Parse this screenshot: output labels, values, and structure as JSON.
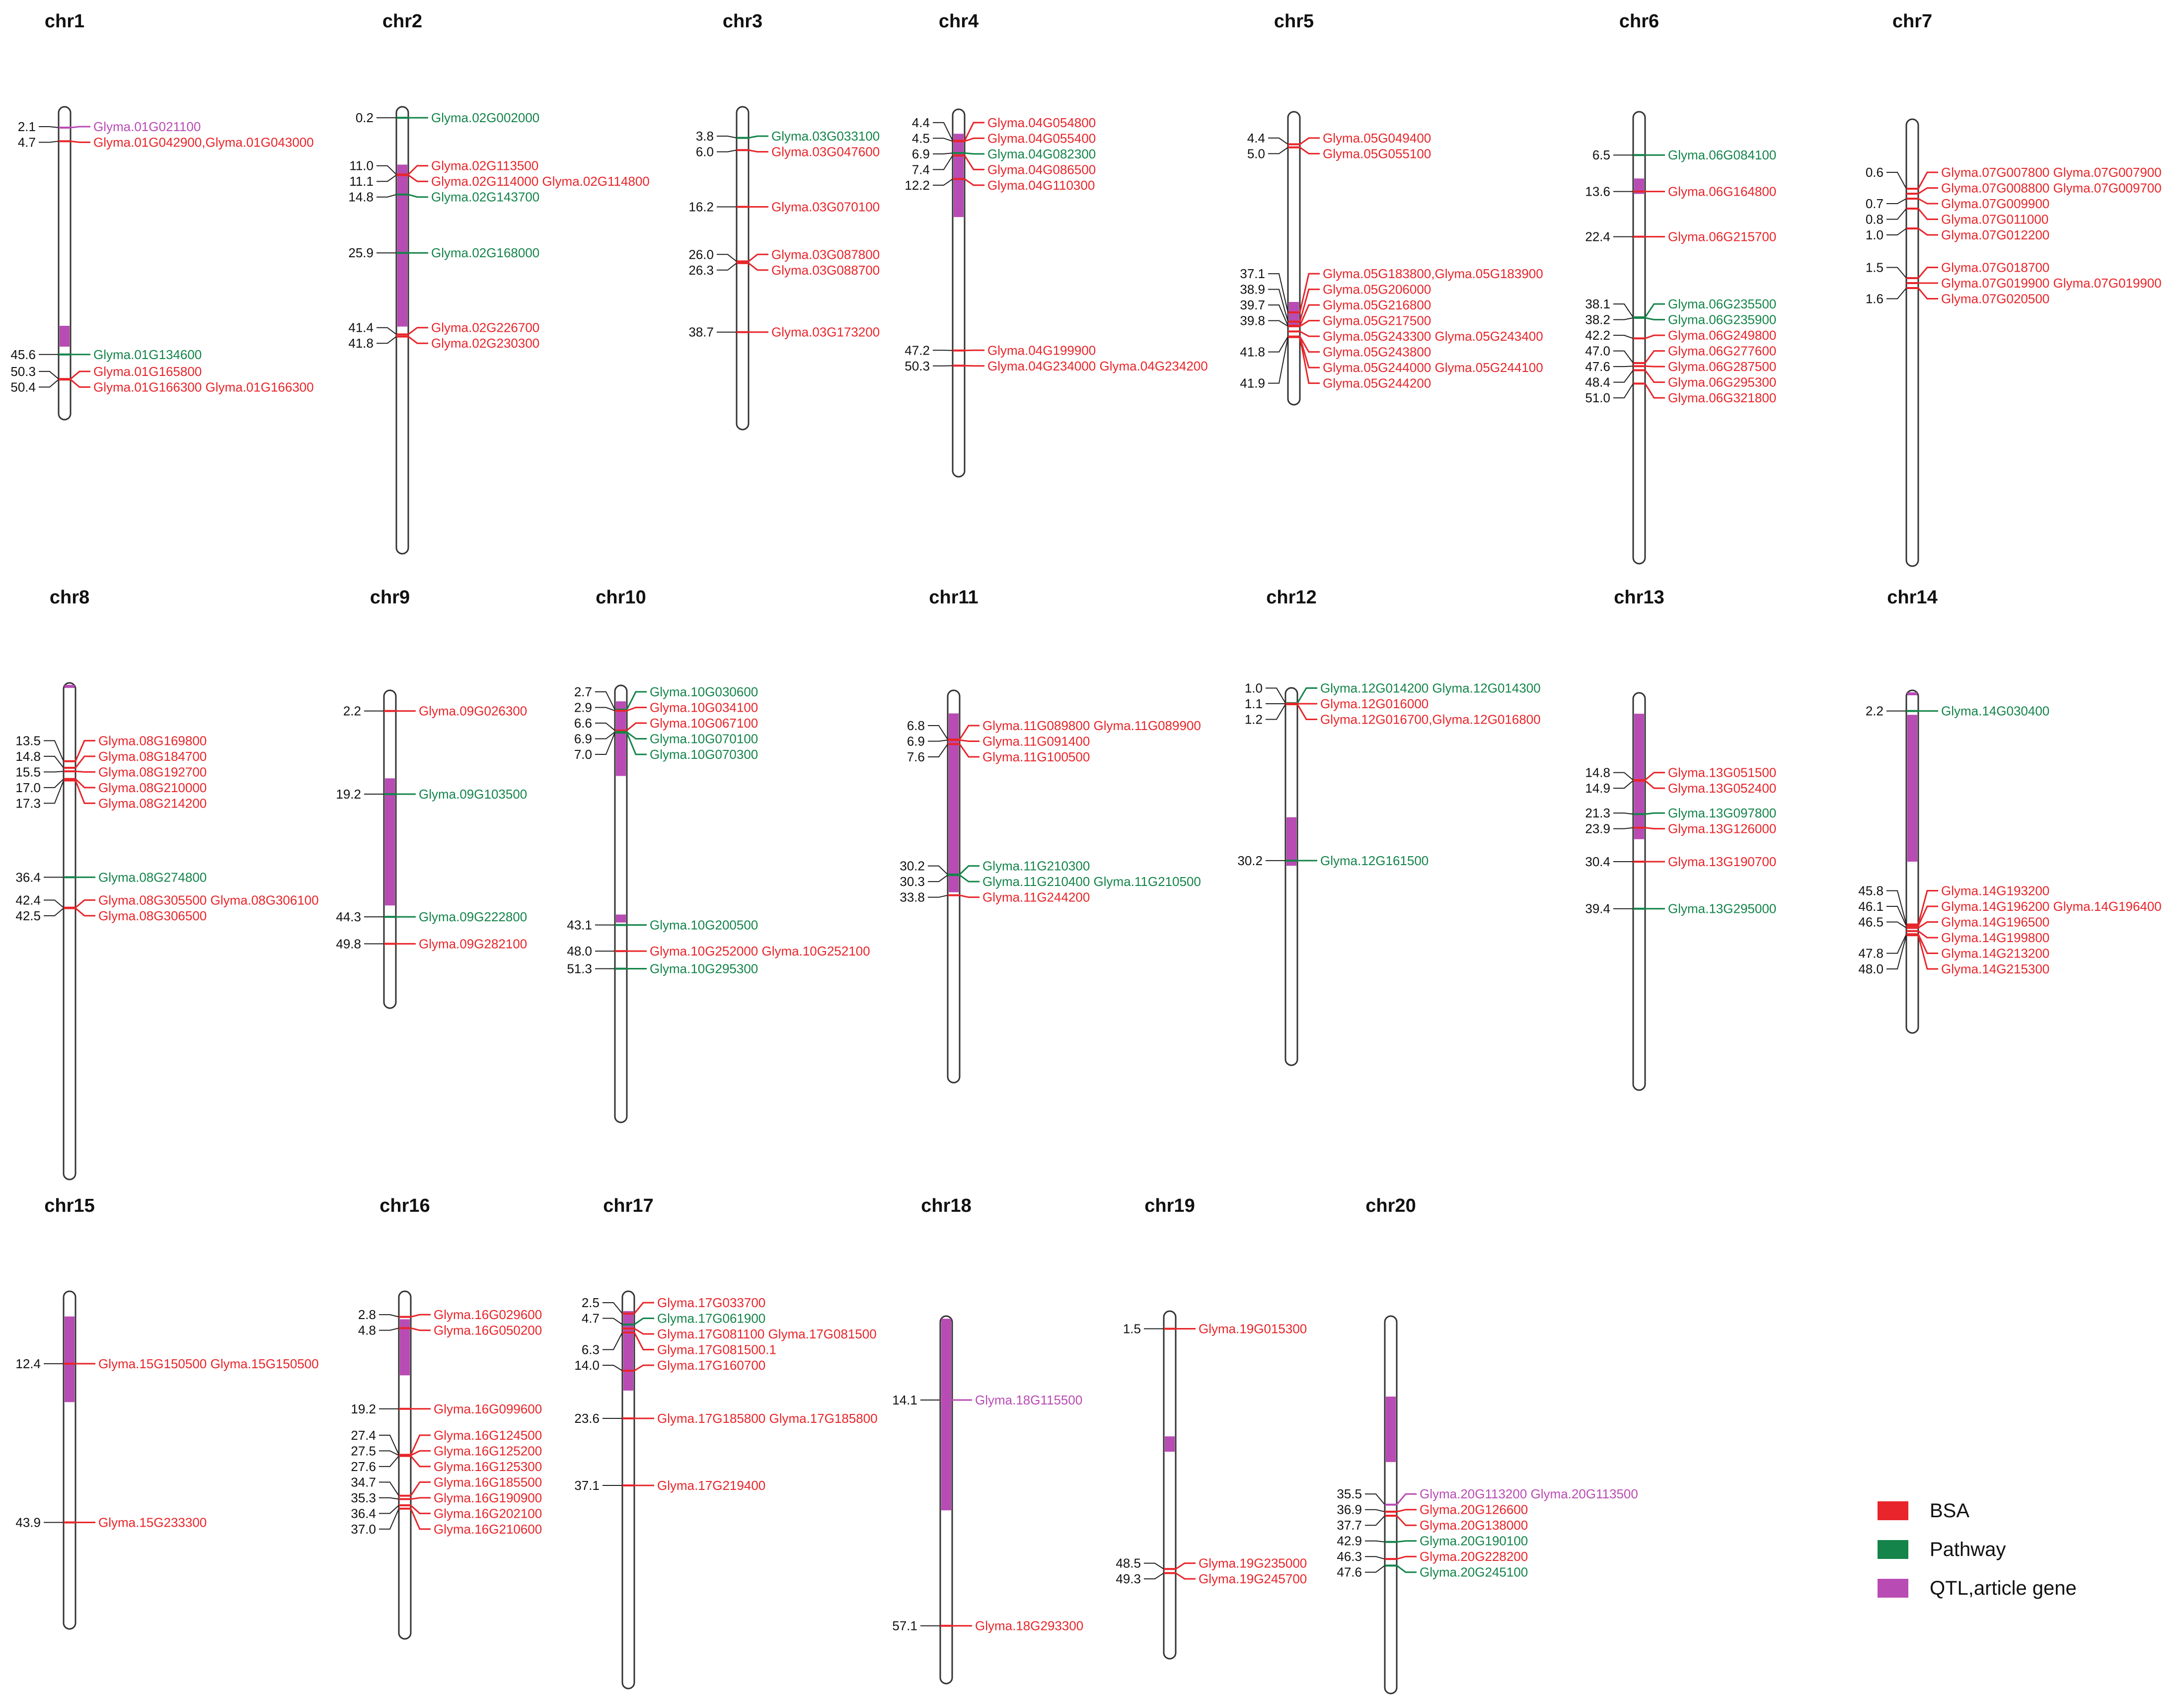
{
  "colors": {
    "BSA": "#e8252a",
    "Pathway": "#14844a",
    "QTL": "#b94bb4",
    "outline": "#333333"
  },
  "legend": [
    {
      "key": "BSA",
      "label": "BSA"
    },
    {
      "key": "Pathway",
      "label": "Pathway"
    },
    {
      "key": "QTL",
      "label": "QTL,article gene"
    }
  ],
  "chromosomes": [
    {
      "name": "chr1",
      "length": 60,
      "regions": [
        [
          42,
          46
        ]
      ],
      "markers": [
        {
          "pos": "2.1",
          "label": "Glyma.01G021100",
          "type": "QTL"
        },
        {
          "pos": "4.7",
          "label": "Glyma.01G042900,Glyma.01G043000",
          "type": "BSA"
        },
        {
          "pos": "45.6",
          "label": "Glyma.01G134600",
          "type": "Pathway"
        },
        {
          "pos": "50.3",
          "label": "Glyma.01G165800",
          "type": "BSA"
        },
        {
          "pos": "50.4",
          "label": "Glyma.01G166300 Glyma.01G166300",
          "type": "BSA"
        }
      ]
    },
    {
      "name": "chr2",
      "length": 85,
      "regions": [
        [
          11,
          41.8
        ]
      ],
      "markers": [
        {
          "pos": "0.2",
          "label": "Glyma.02G002000",
          "type": "Pathway"
        },
        {
          "pos": "11.0",
          "label": "Glyma.02G113500",
          "type": "BSA"
        },
        {
          "pos": "11.1",
          "label": "Glyma.02G114000 Glyma.02G114800",
          "type": "BSA"
        },
        {
          "pos": "14.8",
          "label": "Glyma.02G143700",
          "type": "Pathway"
        },
        {
          "pos": "25.9",
          "label": "Glyma.02G168000",
          "type": "Pathway"
        },
        {
          "pos": "41.4",
          "label": "Glyma.02G226700",
          "type": "BSA"
        },
        {
          "pos": "41.8",
          "label": "Glyma.02G230300",
          "type": "BSA"
        }
      ]
    },
    {
      "name": "chr3",
      "length": 58,
      "regions": [],
      "markers": [
        {
          "pos": "3.8",
          "label": "Glyma.03G033100",
          "type": "Pathway"
        },
        {
          "pos": "6.0",
          "label": "Glyma.03G047600",
          "type": "BSA"
        },
        {
          "pos": "16.2",
          "label": "Glyma.03G070100",
          "type": "BSA"
        },
        {
          "pos": "26.0",
          "label": "Glyma.03G087800",
          "type": "BSA"
        },
        {
          "pos": "26.3",
          "label": "Glyma.03G088700",
          "type": "BSA"
        },
        {
          "pos": "38.7",
          "label": "Glyma.03G173200",
          "type": "BSA"
        }
      ]
    },
    {
      "name": "chr4",
      "length": 75,
      "regions": [
        [
          5,
          22
        ]
      ],
      "markers": [
        {
          "pos": "4.4",
          "label": "Glyma.04G054800",
          "type": "BSA"
        },
        {
          "pos": "4.5",
          "label": "Glyma.04G055400",
          "type": "BSA"
        },
        {
          "pos": "6.9",
          "label": "Glyma.04G082300",
          "type": "Pathway"
        },
        {
          "pos": "7.4",
          "label": "Glyma.04G086500",
          "type": "BSA"
        },
        {
          "pos": "12.2",
          "label": "Glyma.04G110300",
          "type": "BSA"
        },
        {
          "pos": "47.2",
          "label": "Glyma.04G199900",
          "type": "BSA"
        },
        {
          "pos": "50.3",
          "label": "Glyma.04G234000 Glyma.04G234200",
          "type": "BSA"
        }
      ]
    },
    {
      "name": "chr5",
      "length": 57,
      "regions": [
        [
          37,
          41.9
        ]
      ],
      "markers": [
        {
          "pos": "4.4",
          "label": "Glyma.05G049400",
          "type": "BSA"
        },
        {
          "pos": "5.0",
          "label": "Glyma.05G055100",
          "type": "BSA"
        },
        {
          "pos": "37.1",
          "label": "Glyma.05G183800,Glyma.05G183900",
          "type": "BSA"
        },
        {
          "pos": "38.9",
          "label": "Glyma.05G206000",
          "type": "BSA"
        },
        {
          "pos": "39.7",
          "label": "Glyma.05G216800",
          "type": "BSA"
        },
        {
          "pos": "39.8",
          "label": "Glyma.05G217500",
          "type": "BSA"
        },
        {
          "pos": "",
          "label": "Glyma.05G243300 Glyma.05G243400",
          "type": "BSA"
        },
        {
          "pos": "41.8",
          "label": "Glyma.05G243800",
          "type": "BSA"
        },
        {
          "pos": "",
          "label": "Glyma.05G244000 Glyma.05G244100",
          "type": "BSA"
        },
        {
          "pos": "41.9",
          "label": "Glyma.05G244200",
          "type": "BSA"
        }
      ]
    },
    {
      "name": "chr6",
      "length": 88,
      "regions": [
        [
          13,
          16
        ]
      ],
      "markers": [
        {
          "pos": "6.5",
          "label": "Glyma.06G084100",
          "type": "Pathway"
        },
        {
          "pos": "13.6",
          "label": "Glyma.06G164800",
          "type": "BSA"
        },
        {
          "pos": "22.4",
          "label": "Glyma.06G215700",
          "type": "BSA"
        },
        {
          "pos": "38.1",
          "label": "Glyma.06G235500",
          "type": "Pathway"
        },
        {
          "pos": "38.2",
          "label": "Glyma.06G235900",
          "type": "Pathway"
        },
        {
          "pos": "42.2",
          "label": "Glyma.06G249800",
          "type": "BSA"
        },
        {
          "pos": "47.0",
          "label": "Glyma.06G277600",
          "type": "BSA"
        },
        {
          "pos": "47.6",
          "label": "Glyma.06G287500",
          "type": "BSA"
        },
        {
          "pos": "48.4",
          "label": "Glyma.06G295300",
          "type": "BSA"
        },
        {
          "pos": "51.0",
          "label": "Glyma.06G321800",
          "type": "BSA"
        }
      ]
    },
    {
      "name": "chr7",
      "length": 4.5,
      "regions": [],
      "markers": [
        {
          "pos": "0.6",
          "label": "Glyma.07G007800 Glyma.07G007900",
          "type": "BSA"
        },
        {
          "pos": "",
          "label": "Glyma.07G008800 Glyma.07G009700",
          "type": "BSA"
        },
        {
          "pos": "0.7",
          "label": "Glyma.07G009900",
          "type": "BSA"
        },
        {
          "pos": "0.8",
          "label": "Glyma.07G011000",
          "type": "BSA"
        },
        {
          "pos": "1.0",
          "label": "Glyma.07G012200",
          "type": "BSA"
        },
        {
          "pos": "1.5",
          "label": "Glyma.07G018700",
          "type": "BSA"
        },
        {
          "pos": "",
          "label": "Glyma.07G019900 Glyma.07G019900",
          "type": "BSA"
        },
        {
          "pos": "1.6",
          "label": "Glyma.07G020500",
          "type": "BSA"
        }
      ]
    },
    {
      "name": "chr8",
      "length": 98,
      "regions": [
        [
          0,
          1
        ]
      ],
      "markers": [
        {
          "pos": "13.5",
          "label": "Glyma.08G169800",
          "type": "BSA"
        },
        {
          "pos": "14.8",
          "label": "Glyma.08G184700",
          "type": "BSA"
        },
        {
          "pos": "15.5",
          "label": "Glyma.08G192700",
          "type": "BSA"
        },
        {
          "pos": "17.0",
          "label": "Glyma.08G210000",
          "type": "BSA"
        },
        {
          "pos": "17.3",
          "label": "Glyma.08G214200",
          "type": "BSA"
        },
        {
          "pos": "36.4",
          "label": "Glyma.08G274800",
          "type": "Pathway"
        },
        {
          "pos": "42.4",
          "label": "Glyma.08G305500 Glyma.08G306100",
          "type": "BSA"
        },
        {
          "pos": "42.5",
          "label": "Glyma.08G306500",
          "type": "BSA"
        }
      ]
    },
    {
      "name": "chr9",
      "length": 65,
      "regions": [
        [
          18,
          44
        ]
      ],
      "markers": [
        {
          "pos": "2.2",
          "label": "Glyma.09G026300",
          "type": "BSA"
        },
        {
          "pos": "19.2",
          "label": "Glyma.09G103500",
          "type": "Pathway"
        },
        {
          "pos": "44.3",
          "label": "Glyma.09G222800",
          "type": "Pathway"
        },
        {
          "pos": "49.8",
          "label": "Glyma.09G282100",
          "type": "BSA"
        }
      ]
    },
    {
      "name": "chr10",
      "length": 82,
      "regions": [
        [
          3,
          17
        ],
        [
          43,
          44.5
        ]
      ],
      "markers": [
        {
          "pos": "2.7",
          "label": "Glyma.10G030600",
          "type": "Pathway"
        },
        {
          "pos": "2.9",
          "label": "Glyma.10G034100",
          "type": "BSA"
        },
        {
          "pos": "6.6",
          "label": "Glyma.10G067100",
          "type": "BSA"
        },
        {
          "pos": "6.9",
          "label": "Glyma.10G070100",
          "type": "Pathway"
        },
        {
          "pos": "7.0",
          "label": "Glyma.10G070300",
          "type": "Pathway"
        },
        {
          "pos": "43.1",
          "label": "Glyma.10G200500",
          "type": "Pathway"
        },
        {
          "pos": "48.0",
          "label": "Glyma.10G252000 Glyma.10G252100",
          "type": "BSA"
        },
        {
          "pos": "51.3",
          "label": "Glyma.10G295300",
          "type": "Pathway"
        }
      ]
    },
    {
      "name": "chr11",
      "length": 68,
      "regions": [
        [
          4,
          35
        ]
      ],
      "markers": [
        {
          "pos": "6.8",
          "label": "Glyma.11G089800 Glyma.11G089900",
          "type": "BSA"
        },
        {
          "pos": "6.9",
          "label": "Glyma.11G091400",
          "type": "BSA"
        },
        {
          "pos": "7.6",
          "label": "Glyma.11G100500",
          "type": "BSA"
        },
        {
          "pos": "30.2",
          "label": "Glyma.11G210300",
          "type": "Pathway"
        },
        {
          "pos": "30.3",
          "label": "Glyma.11G210400 Glyma.11G210500",
          "type": "Pathway"
        },
        {
          "pos": "33.8",
          "label": "Glyma.11G244200",
          "type": "BSA"
        }
      ]
    },
    {
      "name": "chr12",
      "length": 70,
      "regions": [
        [
          24,
          33
        ]
      ],
      "markers": [
        {
          "pos": "1.0",
          "label": "Glyma.12G014200 Glyma.12G014300",
          "type": "Pathway"
        },
        {
          "pos": "1.1",
          "label": "Glyma.12G016000",
          "type": "BSA"
        },
        {
          "pos": "1.2",
          "label": "Glyma.12G016700,Glyma.12G016800",
          "type": "BSA"
        },
        {
          "pos": "30.2",
          "label": "Glyma.12G161500",
          "type": "Pathway"
        }
      ]
    },
    {
      "name": "chr13",
      "length": 76,
      "regions": [
        [
          4,
          28
        ]
      ],
      "markers": [
        {
          "pos": "14.8",
          "label": "Glyma.13G051500",
          "type": "BSA"
        },
        {
          "pos": "14.9",
          "label": "Glyma.13G052400",
          "type": "BSA"
        },
        {
          "pos": "21.3",
          "label": "Glyma.13G097800",
          "type": "Pathway"
        },
        {
          "pos": "23.9",
          "label": "Glyma.13G126000",
          "type": "BSA"
        },
        {
          "pos": "30.4",
          "label": "Glyma.13G190700",
          "type": "BSA"
        },
        {
          "pos": "39.4",
          "label": "Glyma.13G295000",
          "type": "Pathway"
        }
      ]
    },
    {
      "name": "chr14",
      "length": 70,
      "regions": [
        [
          0,
          1
        ],
        [
          5,
          35
        ]
      ],
      "markers": [
        {
          "pos": "2.2",
          "label": "Glyma.14G030400",
          "type": "Pathway"
        },
        {
          "pos": "45.8",
          "label": "Glyma.14G193200",
          "type": "BSA"
        },
        {
          "pos": "46.1",
          "label": "Glyma.14G196200 Glyma.14G196400",
          "type": "BSA"
        },
        {
          "pos": "46.5",
          "label": "Glyma.14G196500",
          "type": "BSA"
        },
        {
          "pos": "",
          "label": "Glyma.14G199800",
          "type": "BSA"
        },
        {
          "pos": "47.8",
          "label": "Glyma.14G213200",
          "type": "BSA"
        },
        {
          "pos": "48.0",
          "label": "Glyma.14G215300",
          "type": "BSA"
        }
      ]
    },
    {
      "name": "chr15",
      "length": 67,
      "regions": [
        [
          5,
          22
        ]
      ],
      "markers": [
        {
          "pos": "12.4",
          "label": "Glyma.15G150500 Glyma.15G150500",
          "type": "BSA"
        },
        {
          "pos": "43.9",
          "label": "Glyma.15G233300",
          "type": "BSA"
        }
      ]
    },
    {
      "name": "chr16",
      "length": 62,
      "regions": [
        [
          5,
          15
        ]
      ],
      "markers": [
        {
          "pos": "2.8",
          "label": "Glyma.16G029600",
          "type": "BSA"
        },
        {
          "pos": "4.8",
          "label": "Glyma.16G050200",
          "type": "BSA"
        },
        {
          "pos": "19.2",
          "label": "Glyma.16G099600",
          "type": "BSA"
        },
        {
          "pos": "27.4",
          "label": "Glyma.16G124500",
          "type": "BSA"
        },
        {
          "pos": "27.5",
          "label": "Glyma.16G125200",
          "type": "BSA"
        },
        {
          "pos": "27.6",
          "label": "Glyma.16G125300",
          "type": "BSA"
        },
        {
          "pos": "34.7",
          "label": "Glyma.16G185500",
          "type": "BSA"
        },
        {
          "pos": "35.3",
          "label": "Glyma.16G190900",
          "type": "BSA"
        },
        {
          "pos": "36.4",
          "label": "Glyma.16G202100",
          "type": "BSA"
        },
        {
          "pos": "37.0",
          "label": "Glyma.16G210600",
          "type": "BSA"
        }
      ]
    },
    {
      "name": "chr17",
      "length": 80,
      "regions": [
        [
          4,
          20
        ]
      ],
      "markers": [
        {
          "pos": "2.5",
          "label": "Glyma.17G033700",
          "type": "BSA"
        },
        {
          "pos": "4.7",
          "label": "Glyma.17G061900",
          "type": "Pathway"
        },
        {
          "pos": "",
          "label": "Glyma.17G081100 Glyma.17G081500",
          "type": "BSA"
        },
        {
          "pos": "6.3",
          "label": "Glyma.17G081500.1",
          "type": "BSA"
        },
        {
          "pos": "14.0",
          "label": "Glyma.17G160700",
          "type": "BSA"
        },
        {
          "pos": "23.6",
          "label": "Glyma.17G185800 Glyma.17G185800",
          "type": "BSA"
        },
        {
          "pos": "37.1",
          "label": "Glyma.17G219400",
          "type": "BSA"
        }
      ]
    },
    {
      "name": "chr18",
      "length": 70,
      "regions": [
        [
          0.5,
          37
        ]
      ],
      "markers": [
        {
          "pos": "14.1",
          "label": "Glyma.18G115500",
          "type": "QTL"
        },
        {
          "pos": "57.1",
          "label": "Glyma.18G293300",
          "type": "BSA"
        }
      ]
    },
    {
      "name": "chr19",
      "length": 68,
      "regions": [
        [
          24.5,
          27.5
        ]
      ],
      "markers": [
        {
          "pos": "1.5",
          "label": "Glyma.19G015300",
          "type": "BSA"
        },
        {
          "pos": "48.5",
          "label": "Glyma.19G235000",
          "type": "BSA"
        },
        {
          "pos": "49.3",
          "label": "Glyma.19G245700",
          "type": "BSA"
        }
      ]
    },
    {
      "name": "chr20",
      "length": 75,
      "regions": [
        [
          16,
          29
        ]
      ],
      "markers": [
        {
          "pos": "35.5",
          "label": "Glyma.20G113200 Glyma.20G113500",
          "type": "QTL"
        },
        {
          "pos": "36.9",
          "label": "Glyma.20G126600",
          "type": "BSA"
        },
        {
          "pos": "37.7",
          "label": "Glyma.20G138000",
          "type": "BSA"
        },
        {
          "pos": "42.9",
          "label": "Glyma.20G190100",
          "type": "Pathway"
        },
        {
          "pos": "46.3",
          "label": "Glyma.20G228200",
          "type": "BSA"
        },
        {
          "pos": "47.6",
          "label": "Glyma.20G245100",
          "type": "Pathway"
        }
      ]
    }
  ]
}
